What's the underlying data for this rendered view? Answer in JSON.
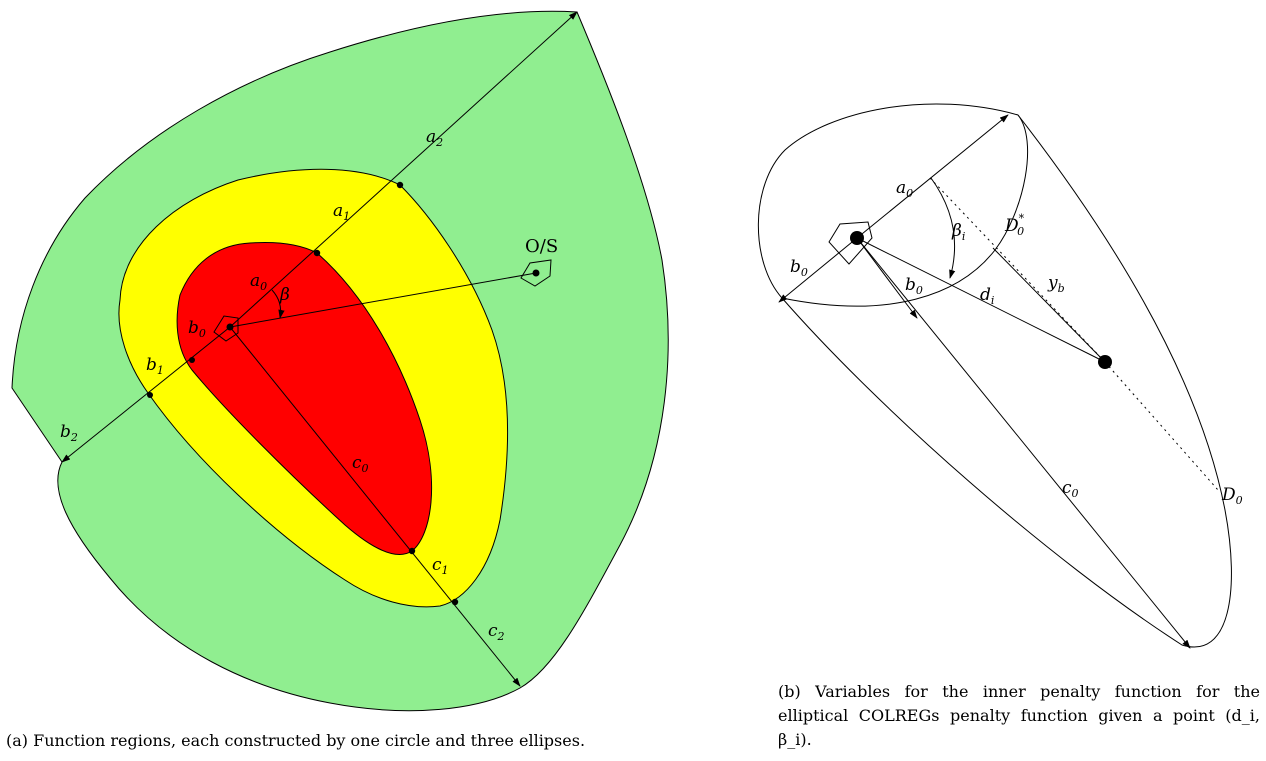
{
  "figure_a": {
    "labels": {
      "a0": "a",
      "a0_sub": "0",
      "a1": "a",
      "a1_sub": "1",
      "a2": "a",
      "a2_sub": "2",
      "b0": "b",
      "b0_sub": "0",
      "b1": "b",
      "b1_sub": "1",
      "b2": "b",
      "b2_sub": "2",
      "c0": "c",
      "c0_sub": "0",
      "c1": "c",
      "c1_sub": "1",
      "c2": "c",
      "c2_sub": "2",
      "beta": "β",
      "os": "O/S"
    },
    "colors": {
      "outer": "#90ee90",
      "middle": "#ffff00",
      "inner": "#ff0000"
    },
    "caption": "(a) Function regions, each constructed by one circle and three ellipses."
  },
  "figure_b": {
    "labels": {
      "a0": "a",
      "a0_sub": "0",
      "b0_left": "b",
      "b0_left_sub": "0",
      "b0_inner": "b",
      "b0_inner_sub": "0",
      "beta_i": "β",
      "beta_i_sub": "i",
      "d_i": "d",
      "d_i_sub": "i",
      "y_b": "y",
      "y_b_sub": "b",
      "D0_star": "D",
      "D0_star_sub": "0",
      "D0_star_sup": "*",
      "D0": "D",
      "D0_sub": "0",
      "c0": "c",
      "c0_sub": "0"
    },
    "caption": "(b) Variables for the inner penalty function for the elliptical COLREGs penalty function given a point (d_i, β_i)."
  }
}
